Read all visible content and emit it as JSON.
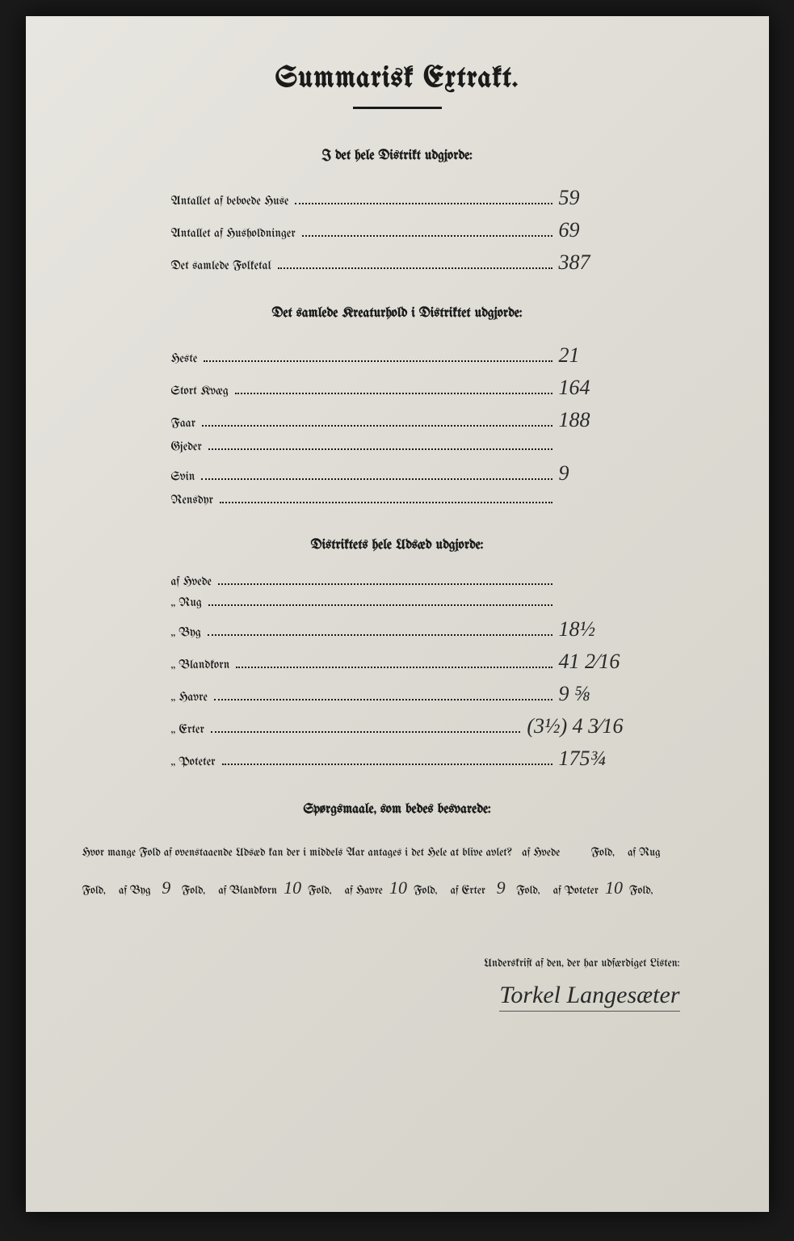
{
  "title": "Summarisk Extrakt.",
  "section1": {
    "header": "I det hele Distrikt udgjorde:",
    "rows": [
      {
        "label": "Antallet af beboede Huse",
        "value": "59"
      },
      {
        "label": "Antallet af Husholdninger",
        "value": "69"
      },
      {
        "label": "Det samlede Folketal",
        "value": "387"
      }
    ]
  },
  "section2": {
    "header": "Det samlede Kreaturhold i Distriktet udgjorde:",
    "rows": [
      {
        "label": "Heste",
        "value": "21"
      },
      {
        "label": "Stort Kvæg",
        "value": "164"
      },
      {
        "label": "Faar",
        "value": "188"
      },
      {
        "label": "Gjeder",
        "value": ""
      },
      {
        "label": "Svin",
        "value": "9"
      },
      {
        "label": "Rensdyr",
        "value": ""
      }
    ]
  },
  "section3": {
    "header": "Distriktets hele Udsæd udgjorde:",
    "rows": [
      {
        "label": "af Hvede",
        "value": ""
      },
      {
        "label": "„ Rug",
        "value": ""
      },
      {
        "label": "„ Byg",
        "value": "18½"
      },
      {
        "label": "„ Blandkorn",
        "value": "41 2⁄16"
      },
      {
        "label": "„ Havre",
        "value": "9 ⅝"
      },
      {
        "label": "„ Erter",
        "value": "(3½) 4 3⁄16"
      },
      {
        "label": "„ Poteter",
        "value": "175¾"
      }
    ]
  },
  "questions": {
    "header": "Spørgsmaale, som bedes besvarede:",
    "intro": "Hvor mange Fold af ovenstaaende Udsæd kan der i middels Aar antages i det Hele at blive avlet?",
    "items": [
      {
        "crop": "af Hvede",
        "value": ""
      },
      {
        "crop": "af Rug",
        "value": ""
      },
      {
        "crop": "af Byg",
        "value": "9"
      },
      {
        "crop": "af Blandkorn",
        "value": "10"
      },
      {
        "crop": "af Havre",
        "value": "10"
      },
      {
        "crop": "af Erter",
        "value": "9"
      },
      {
        "crop": "af Poteter",
        "value": "10"
      }
    ],
    "fold_word": "Fold,"
  },
  "signature": {
    "label": "Underskrift af den, der har udfærdiget Listen:",
    "name": "Torkel Langesæter"
  },
  "colors": {
    "page_bg": "#e0ded6",
    "text": "#1a1a1a",
    "handwriting": "#2a2a2a"
  }
}
